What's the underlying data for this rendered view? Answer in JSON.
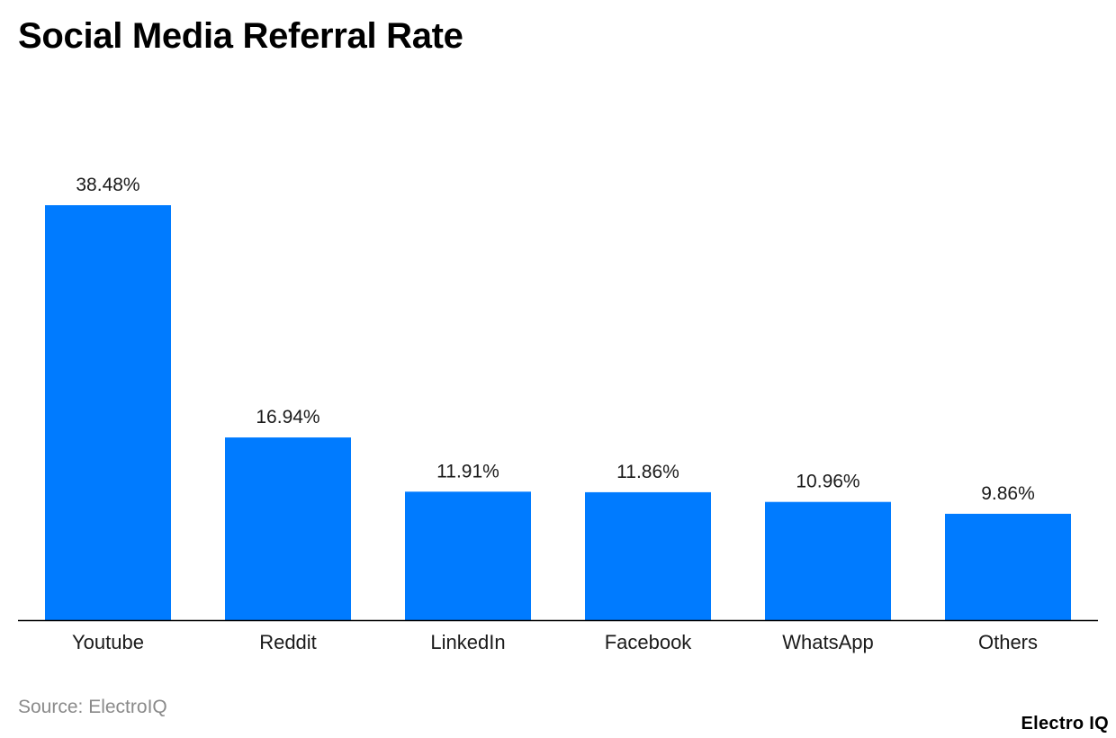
{
  "title": "Social Media Referral Rate",
  "source": "Source: ElectroIQ",
  "brand": "Electro IQ",
  "colors": {
    "bar": "#007bff",
    "axis": "#000000",
    "text": "#1a1a1a"
  },
  "chart_data": {
    "type": "bar",
    "categories": [
      "Youtube",
      "Reddit",
      "LinkedIn",
      "Facebook",
      "WhatsApp",
      "Others"
    ],
    "values": [
      38.48,
      16.94,
      11.91,
      11.86,
      10.96,
      9.86
    ],
    "value_labels": [
      "38.48%",
      "16.94%",
      "11.91%",
      "11.86%",
      "10.96%",
      "9.86%"
    ],
    "title": "Social Media Referral Rate",
    "xlabel": "",
    "ylabel": "",
    "ylim": [
      0,
      38.48
    ],
    "grid": false,
    "legend": "none"
  }
}
